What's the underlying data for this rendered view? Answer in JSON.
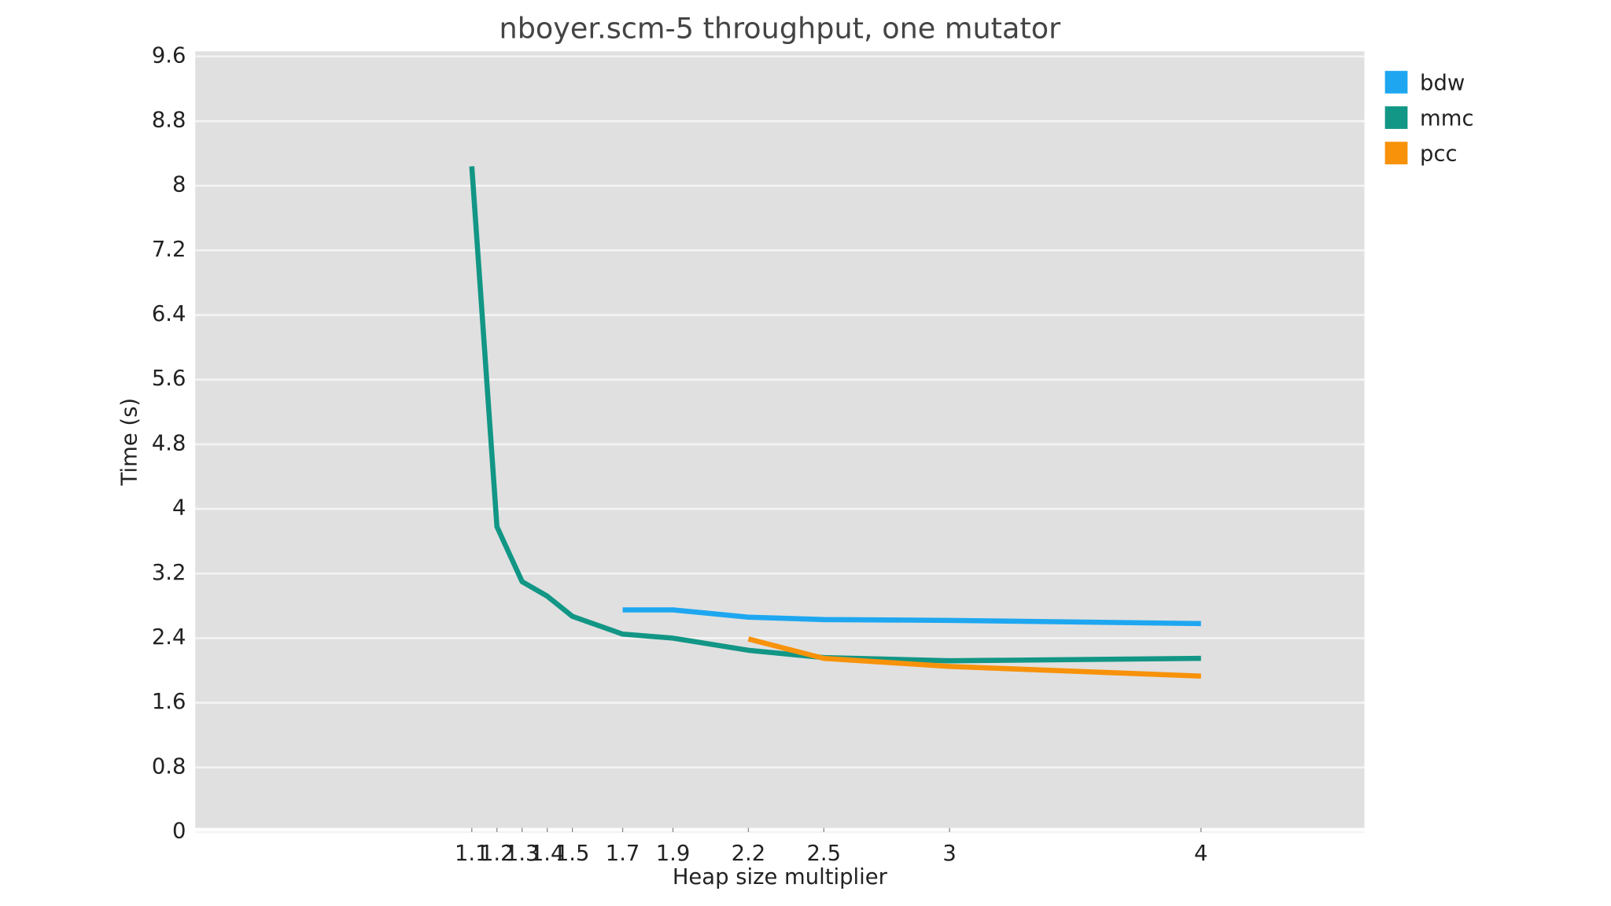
{
  "chart_data": {
    "type": "line",
    "title": "nboyer.scm-5 throughput, one mutator",
    "x_label": "Heap size multiplier",
    "y_label": "Time (s)",
    "x": [
      1.1,
      1.2,
      1.3,
      1.4,
      1.5,
      1.7,
      1.9,
      2.2,
      2.5,
      3,
      4
    ],
    "xticks": [
      1.1,
      1.2,
      1.3,
      1.4,
      1.5,
      1.7,
      1.9,
      2.2,
      2.5,
      3,
      4
    ],
    "xlim": [
      0,
      4.65
    ],
    "ylim": [
      0,
      9.6
    ],
    "yticks": [
      0,
      0.8,
      1.6,
      2.4,
      3.2,
      4,
      4.8,
      5.6,
      6.4,
      7.2,
      8,
      8.8,
      9.6
    ],
    "grid": true,
    "legend": "outside-top-right",
    "series": [
      {
        "name": "bdw",
        "color": "#1ea7f0",
        "values": [
          null,
          null,
          null,
          null,
          null,
          2.75,
          2.75,
          2.66,
          2.63,
          2.62,
          2.58
        ]
      },
      {
        "name": "mmc",
        "color": "#129685",
        "values": [
          8.24,
          3.78,
          3.1,
          2.92,
          2.67,
          2.45,
          2.4,
          2.25,
          2.16,
          2.12,
          2.15
        ]
      },
      {
        "name": "pcc",
        "color": "#f7920a",
        "values": [
          null,
          null,
          null,
          null,
          null,
          null,
          null,
          2.39,
          2.15,
          2.05,
          1.93
        ]
      }
    ]
  }
}
